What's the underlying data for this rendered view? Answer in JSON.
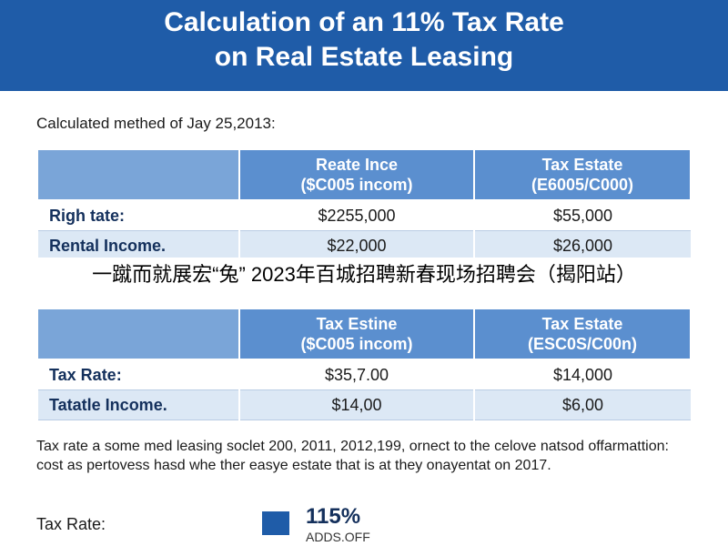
{
  "header": {
    "title": [
      "Calculation of an 11% Tax Rate",
      "on Real Estate Leasing"
    ]
  },
  "subtitle": "Calculated methed of Jay 25,2013:",
  "table1": {
    "columns": [
      [
        "Reate Ince",
        "($C005 incom)"
      ],
      [
        "Tax Estate",
        "(E6005/C000)"
      ]
    ],
    "rows": [
      [
        "Righ tate:",
        "$2255,000",
        "$55,000"
      ],
      [
        "Rental Income.",
        "$22,000",
        "$26,000"
      ]
    ]
  },
  "overlay": "一蹴而就展宏“兔” 2023年百城招聘新春现场招聘会（揭阳站）",
  "table2": {
    "columns": [
      [
        "Tax Estine",
        "($C005 incom)"
      ],
      [
        "Tax Estate",
        "(ESC0S/C00n)"
      ]
    ],
    "rows": [
      [
        "Tax Rate:",
        "$35,7.00",
        "$14,000"
      ],
      [
        "Tatatle Income.",
        "$14,00",
        "$6,00"
      ]
    ]
  },
  "paragraph": "Tax rate a some med leasing soclet 200, 2011, 2012,199, ornect to the celove natsod offarmattion: cost as pertovess hasd whe ther easye estate that is at they onayentat on 2017.",
  "footer": {
    "label": "Tax Rate:",
    "value": "115%",
    "note": "ADDS.OFF"
  }
}
